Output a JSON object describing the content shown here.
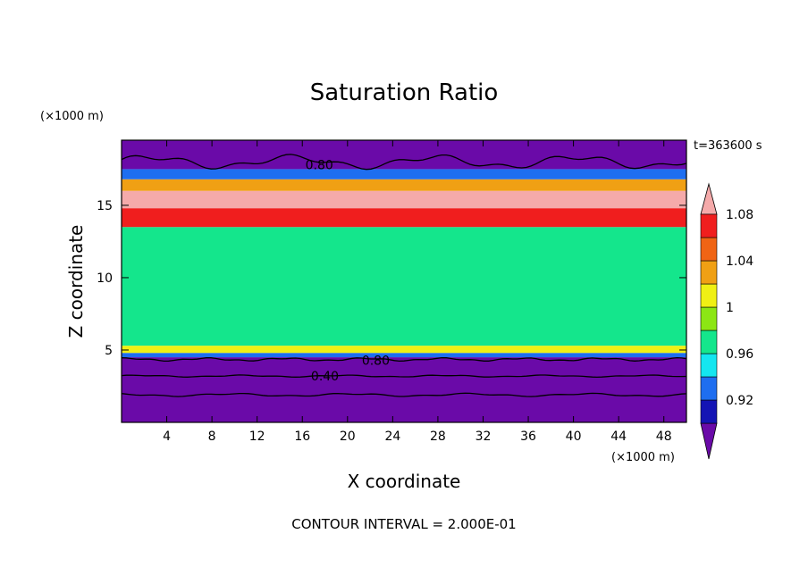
{
  "chart_data": {
    "type": "heatmap",
    "title": "Saturation Ratio",
    "xlabel": "X coordinate",
    "ylabel": "Z coordinate",
    "x_unit": "(×1000 m)",
    "y_unit": "(×1000 m)",
    "time_label": "t=363600 s",
    "footer": "CONTOUR INTERVAL = 2.000E-01",
    "xlim": [
      0,
      50
    ],
    "ylim": [
      0,
      19.5
    ],
    "x_ticks": [
      "4",
      "8",
      "12",
      "16",
      "20",
      "24",
      "28",
      "32",
      "36",
      "40",
      "44",
      "48"
    ],
    "y_ticks": [
      "5",
      "10",
      "15"
    ],
    "colorbar": {
      "labels": [
        "0.92",
        "0.96",
        "1",
        "1.04",
        "1.08"
      ],
      "bins": [
        {
          "max": 0.92,
          "color": "#6a0aa8"
        },
        {
          "max": 0.94,
          "color": "#1414b4"
        },
        {
          "max": 0.96,
          "color": "#1e6ef0"
        },
        {
          "max": 0.98,
          "color": "#14e6f0"
        },
        {
          "max": 1.0,
          "color": "#14e68c"
        },
        {
          "max": 1.02,
          "color": "#8ce614"
        },
        {
          "max": 1.04,
          "color": "#f0f014"
        },
        {
          "max": 1.06,
          "color": "#f0a014"
        },
        {
          "max": 1.08,
          "color": "#f06414"
        },
        {
          "max": 1.1,
          "color": "#f01e1e"
        },
        {
          "max": 9.99,
          "color": "#f5aaaa"
        }
      ]
    },
    "layers": [
      {
        "z_from": 0,
        "z_to": 4.5,
        "value": 0.8
      },
      {
        "z_from": 4.5,
        "z_to": 4.8,
        "value": 0.95
      },
      {
        "z_from": 4.8,
        "z_to": 5.3,
        "value": 1.03
      },
      {
        "z_from": 5.3,
        "z_to": 13.5,
        "value": 1.0
      },
      {
        "z_from": 13.5,
        "z_to": 14.8,
        "value": 1.09
      },
      {
        "z_from": 14.8,
        "z_to": 16.0,
        "value": 1.12
      },
      {
        "z_from": 16.0,
        "z_to": 16.8,
        "value": 1.05
      },
      {
        "z_from": 16.8,
        "z_to": 17.5,
        "value": 0.95
      },
      {
        "z_from": 17.5,
        "z_to": 19.5,
        "value": 0.8
      }
    ],
    "contour_labels": [
      {
        "text": "0.80",
        "x": 17.5,
        "z": 17.8
      },
      {
        "text": "0.80",
        "x": 22.5,
        "z": 4.3
      },
      {
        "text": "0.40",
        "x": 18.0,
        "z": 3.2
      }
    ]
  }
}
